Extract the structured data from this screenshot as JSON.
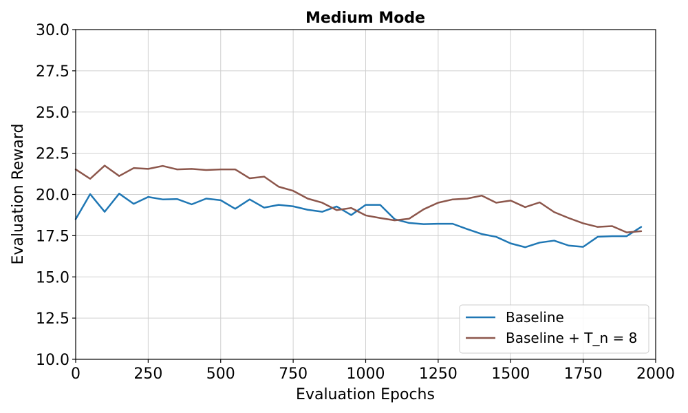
{
  "chart_data": {
    "type": "line",
    "title": "Medium Mode",
    "xlabel": "Evaluation Epochs",
    "ylabel": "Evaluation Reward",
    "xlim": [
      0,
      2000
    ],
    "ylim": [
      10.0,
      30.0
    ],
    "xticks": [
      0,
      250,
      500,
      750,
      1000,
      1250,
      1500,
      1750,
      2000
    ],
    "yticks": [
      10.0,
      12.5,
      15.0,
      17.5,
      20.0,
      22.5,
      25.0,
      27.5,
      30.0
    ],
    "grid": true,
    "legend_position": "lower-right",
    "x": [
      0,
      50,
      100,
      150,
      200,
      250,
      300,
      350,
      400,
      450,
      500,
      550,
      600,
      650,
      700,
      750,
      800,
      850,
      900,
      950,
      1000,
      1050,
      1100,
      1150,
      1200,
      1250,
      1300,
      1350,
      1400,
      1450,
      1500,
      1550,
      1600,
      1650,
      1700,
      1750,
      1800,
      1850,
      1900,
      1950
    ],
    "series": [
      {
        "name": "Baseline",
        "color": "#1f77b4",
        "values": [
          18.5,
          20.02,
          18.95,
          20.05,
          19.43,
          19.85,
          19.7,
          19.72,
          19.4,
          19.75,
          19.65,
          19.13,
          19.7,
          19.2,
          19.37,
          19.28,
          19.07,
          18.95,
          19.27,
          18.75,
          19.37,
          19.37,
          18.5,
          18.27,
          18.2,
          18.22,
          18.22,
          17.9,
          17.6,
          17.43,
          17.03,
          16.8,
          17.08,
          17.2,
          16.9,
          16.82,
          17.43,
          17.47,
          17.47,
          18.03
        ]
      },
      {
        "name": "Baseline + T_n = 8",
        "color": "#8c564b",
        "values": [
          21.52,
          20.95,
          21.75,
          21.12,
          21.6,
          21.55,
          21.73,
          21.52,
          21.55,
          21.48,
          21.52,
          21.52,
          20.98,
          21.08,
          20.47,
          20.22,
          19.75,
          19.5,
          19.05,
          19.18,
          18.73,
          18.57,
          18.43,
          18.53,
          19.1,
          19.5,
          19.7,
          19.75,
          19.93,
          19.5,
          19.63,
          19.23,
          19.52,
          18.93,
          18.57,
          18.25,
          18.03,
          18.08,
          17.7,
          17.77
        ]
      }
    ]
  }
}
